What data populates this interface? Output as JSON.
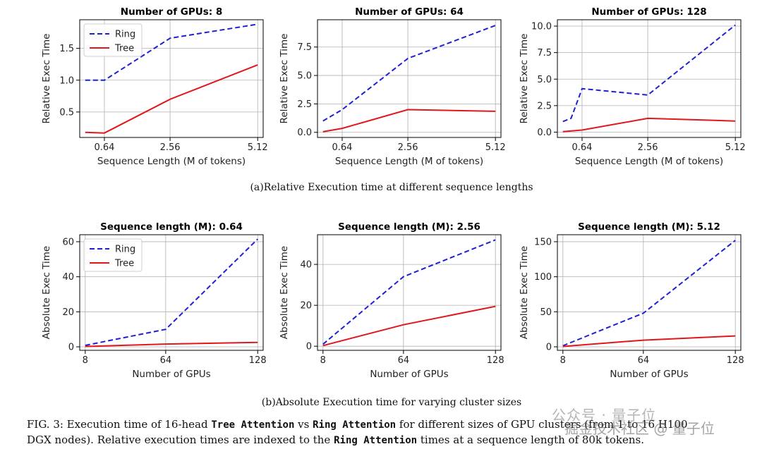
{
  "chart_data": [
    {
      "type": "line",
      "title": "Number of GPUs: 8",
      "xlabel": "Sequence Length (M of tokens)",
      "ylabel": "Relative Exec Time",
      "xticks": [
        "0.64",
        "2.56",
        "5.12"
      ],
      "yticks": [
        "0.5",
        "1.0",
        "1.5"
      ],
      "xlim": [
        0.08,
        5.12
      ],
      "ylim": [
        0.1,
        1.95
      ],
      "legend": [
        "Ring",
        "Tree"
      ],
      "series": [
        {
          "name": "Ring",
          "x": [
            0.08,
            0.64,
            2.56,
            5.12
          ],
          "y": [
            1.0,
            1.0,
            1.66,
            1.88
          ]
        },
        {
          "name": "Tree",
          "x": [
            0.08,
            0.64,
            2.56,
            5.12
          ],
          "y": [
            0.18,
            0.17,
            0.7,
            1.24
          ]
        }
      ]
    },
    {
      "type": "line",
      "title": "Number of GPUs: 64",
      "xlabel": "Sequence Length (M of tokens)",
      "ylabel": "Relative Exec Time",
      "xticks": [
        "0.64",
        "2.56",
        "5.12"
      ],
      "yticks": [
        "0.0",
        "2.5",
        "5.0",
        "7.5"
      ],
      "xlim": [
        0.08,
        5.12
      ],
      "ylim": [
        -0.45,
        9.9
      ],
      "series": [
        {
          "name": "Ring",
          "x": [
            0.08,
            0.64,
            2.56,
            5.12
          ],
          "y": [
            1.0,
            2.0,
            6.5,
            9.4
          ]
        },
        {
          "name": "Tree",
          "x": [
            0.08,
            0.64,
            2.56,
            5.12
          ],
          "y": [
            0.05,
            0.35,
            2.0,
            1.85
          ]
        }
      ]
    },
    {
      "type": "line",
      "title": "Number of GPUs: 128",
      "xlabel": "Sequence Length (M of tokens)",
      "ylabel": "Relative Exec Time",
      "xticks": [
        "0.64",
        "2.56",
        "5.12"
      ],
      "yticks": [
        "0.0",
        "2.5",
        "5.0",
        "7.5",
        "10.0"
      ],
      "xlim": [
        0.08,
        5.12
      ],
      "ylim": [
        -0.5,
        10.6
      ],
      "series": [
        {
          "name": "Ring",
          "x": [
            0.08,
            0.32,
            0.64,
            2.56,
            5.12
          ],
          "y": [
            1.0,
            1.3,
            4.1,
            3.5,
            10.1
          ]
        },
        {
          "name": "Tree",
          "x": [
            0.08,
            0.64,
            2.56,
            5.12
          ],
          "y": [
            0.05,
            0.2,
            1.3,
            1.05
          ]
        }
      ]
    },
    {
      "type": "line",
      "title": "Sequence length (M): 0.64",
      "xlabel": "Number of GPUs",
      "ylabel": "Absolute Exec Time",
      "xticks": [
        "8",
        "64",
        "128"
      ],
      "yticks": [
        "0",
        "20",
        "40",
        "60"
      ],
      "xlim": [
        8,
        128
      ],
      "ylim": [
        -2,
        64
      ],
      "legend": [
        "Ring",
        "Tree"
      ],
      "series": [
        {
          "name": "Ring",
          "x": [
            8,
            64,
            128
          ],
          "y": [
            0.8,
            10,
            61.5
          ]
        },
        {
          "name": "Tree",
          "x": [
            8,
            64,
            128
          ],
          "y": [
            0.2,
            1.6,
            2.5
          ]
        }
      ]
    },
    {
      "type": "line",
      "title": "Sequence length (M): 2.56",
      "xlabel": "Number of GPUs",
      "ylabel": "Absolute Exec Time",
      "xticks": [
        "8",
        "64",
        "128"
      ],
      "yticks": [
        "0",
        "20",
        "40"
      ],
      "xlim": [
        8,
        128
      ],
      "ylim": [
        -2,
        54.5
      ],
      "series": [
        {
          "name": "Ring",
          "x": [
            8,
            64,
            128
          ],
          "y": [
            1.0,
            34,
            52
          ]
        },
        {
          "name": "Tree",
          "x": [
            8,
            64,
            128
          ],
          "y": [
            0.3,
            10.5,
            19.5
          ]
        }
      ]
    },
    {
      "type": "line",
      "title": "Sequence length (M): 5.12",
      "xlabel": "Number of GPUs",
      "ylabel": "Absolute Exec Time",
      "xticks": [
        "8",
        "64",
        "128"
      ],
      "yticks": [
        "0",
        "50",
        "100",
        "150"
      ],
      "xlim": [
        8,
        128
      ],
      "ylim": [
        -5,
        160
      ],
      "series": [
        {
          "name": "Ring",
          "x": [
            8,
            64,
            128
          ],
          "y": [
            1.5,
            48,
            152
          ]
        },
        {
          "name": "Tree",
          "x": [
            8,
            64,
            128
          ],
          "y": [
            0.5,
            9.5,
            15.5
          ]
        }
      ]
    }
  ],
  "colors": {
    "ring": "#1f1fd6",
    "tree": "#e0181c",
    "grid": "#b0b0b0"
  },
  "captions": {
    "a": "(a)Relative Execution time at different sequence lengths",
    "b": "(b)Absolute Execution time for varying cluster sizes",
    "fig_prefix": "FIG. 3: Execution time of 16-head ",
    "fig_code1": "Tree Attention",
    "fig_mid1": " vs ",
    "fig_code2": "Ring Attention",
    "fig_mid2": " for different sizes of GPU clusters (from 1 to 16 H100",
    "fig_line2a": "DGX nodes). Relative execution times are indexed to the ",
    "fig_code3": "Ring Attention",
    "fig_line2b": " times at a sequence length of 80k tokens."
  },
  "watermark": {
    "line1": "公众号 · 量子位",
    "line2": "掘金技术社区 @ 量子位"
  }
}
